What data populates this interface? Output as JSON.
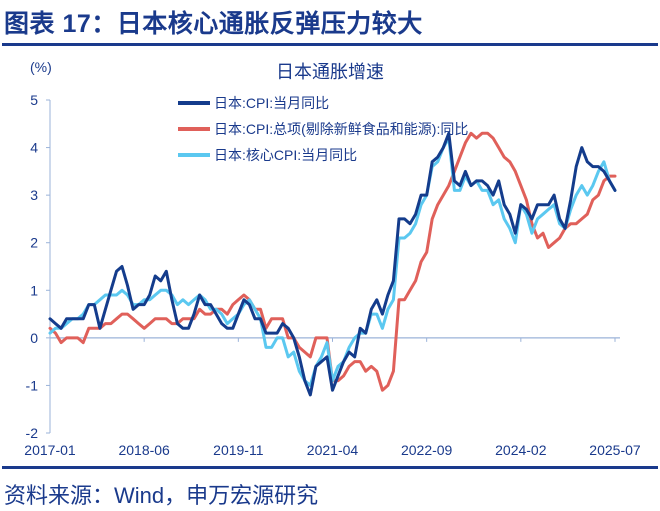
{
  "header": {
    "title": "图表 17：日本核心通胀反弹压力较大"
  },
  "source": "资料来源：Wind，申万宏源研究",
  "chart_data": {
    "type": "line",
    "title": "日本通胀增速",
    "ylabel": "(%)",
    "xlabel": "",
    "ylim": [
      -2,
      5
    ],
    "yticks": [
      "5",
      "4",
      "3",
      "2",
      "1",
      "0",
      "-1",
      "-2"
    ],
    "xticks": [
      "2017-01",
      "2018-06",
      "2019-11",
      "2021-04",
      "2022-09",
      "2024-02",
      "2025-07"
    ],
    "x_start": "2017-01",
    "x_end": "2025-07",
    "frequency": "monthly",
    "grid": false,
    "legend_position": "top-left",
    "series": [
      {
        "name": "日本:CPI:当月同比",
        "color": "#143c8c",
        "values": [
          0.4,
          0.3,
          0.2,
          0.4,
          0.4,
          0.4,
          0.4,
          0.7,
          0.7,
          0.2,
          0.6,
          1.0,
          1.4,
          1.5,
          1.1,
          0.6,
          0.7,
          0.7,
          0.9,
          1.3,
          1.2,
          1.4,
          0.8,
          0.3,
          0.2,
          0.2,
          0.5,
          0.9,
          0.7,
          0.7,
          0.5,
          0.3,
          0.2,
          0.2,
          0.5,
          0.8,
          0.7,
          0.4,
          0.4,
          0.1,
          0.1,
          0.1,
          0.3,
          0.2,
          0.0,
          -0.4,
          -0.9,
          -1.2,
          -0.6,
          -0.5,
          -0.4,
          -1.1,
          -0.8,
          -0.5,
          -0.3,
          -0.4,
          0.2,
          0.1,
          0.6,
          0.8,
          0.5,
          0.9,
          1.2,
          2.5,
          2.5,
          2.4,
          2.6,
          3.0,
          3.0,
          3.7,
          3.8,
          4.0,
          4.3,
          3.3,
          3.2,
          3.5,
          3.2,
          3.3,
          3.3,
          3.2,
          3.0,
          3.3,
          2.8,
          2.6,
          2.2,
          2.8,
          2.7,
          2.5,
          2.8,
          2.8,
          2.8,
          3.0,
          2.5,
          2.3,
          2.9,
          3.6,
          4.0,
          3.7,
          3.6,
          3.6,
          3.5,
          3.3,
          3.1
        ]
      },
      {
        "name": "日本:CPI:总项(剔除新鲜食品和能源):同比",
        "color": "#e0605a",
        "values": [
          0.2,
          0.1,
          -0.1,
          0.0,
          0.0,
          0.0,
          -0.1,
          0.2,
          0.2,
          0.2,
          0.3,
          0.3,
          0.4,
          0.5,
          0.5,
          0.4,
          0.3,
          0.2,
          0.3,
          0.4,
          0.4,
          0.4,
          0.3,
          0.3,
          0.4,
          0.4,
          0.4,
          0.6,
          0.5,
          0.5,
          0.6,
          0.6,
          0.5,
          0.7,
          0.8,
          0.9,
          0.8,
          0.6,
          0.6,
          0.2,
          0.4,
          0.4,
          0.4,
          0.0,
          0.0,
          -0.2,
          -0.3,
          -0.4,
          0.0,
          0.0,
          0.0,
          -0.9,
          -0.9,
          -0.8,
          -0.6,
          -0.5,
          -0.5,
          -0.7,
          -0.6,
          -0.7,
          -1.1,
          -1.0,
          -0.7,
          0.8,
          0.8,
          1.0,
          1.2,
          1.6,
          1.8,
          2.5,
          2.8,
          3.0,
          3.2,
          3.5,
          3.8,
          4.1,
          4.3,
          4.2,
          4.3,
          4.3,
          4.2,
          4.0,
          3.8,
          3.7,
          3.5,
          3.2,
          2.9,
          2.4,
          2.1,
          2.2,
          1.9,
          2.0,
          2.1,
          2.3,
          2.4,
          2.4,
          2.5,
          2.6,
          2.9,
          3.0,
          3.3,
          3.4,
          3.4
        ]
      },
      {
        "name": "日本:核心CPI:当月同比",
        "color": "#5bc8f0",
        "values": [
          0.1,
          0.2,
          0.2,
          0.3,
          0.4,
          0.4,
          0.5,
          0.7,
          0.7,
          0.8,
          0.9,
          0.9,
          0.9,
          1.0,
          0.9,
          0.7,
          0.7,
          0.8,
          0.8,
          0.9,
          1.0,
          1.0,
          0.9,
          0.7,
          0.8,
          0.7,
          0.8,
          0.9,
          0.8,
          0.6,
          0.6,
          0.5,
          0.3,
          0.4,
          0.5,
          0.7,
          0.8,
          0.6,
          0.4,
          -0.2,
          -0.2,
          0.0,
          0.0,
          -0.4,
          -0.3,
          -0.7,
          -0.9,
          -1.0,
          -0.6,
          -0.4,
          -0.1,
          -0.9,
          -0.6,
          -0.5,
          -0.2,
          0.0,
          0.1,
          0.1,
          0.5,
          0.5,
          0.2,
          0.6,
          0.8,
          2.1,
          2.1,
          2.2,
          2.4,
          2.8,
          3.0,
          3.6,
          3.7,
          4.0,
          4.2,
          3.1,
          3.1,
          3.4,
          3.2,
          3.3,
          3.1,
          3.1,
          2.8,
          2.9,
          2.5,
          2.3,
          2.0,
          2.8,
          2.6,
          2.2,
          2.5,
          2.6,
          2.7,
          2.8,
          2.4,
          2.3,
          2.7,
          3.0,
          3.2,
          3.0,
          3.2,
          3.5,
          3.7,
          3.3,
          3.1
        ]
      }
    ]
  }
}
